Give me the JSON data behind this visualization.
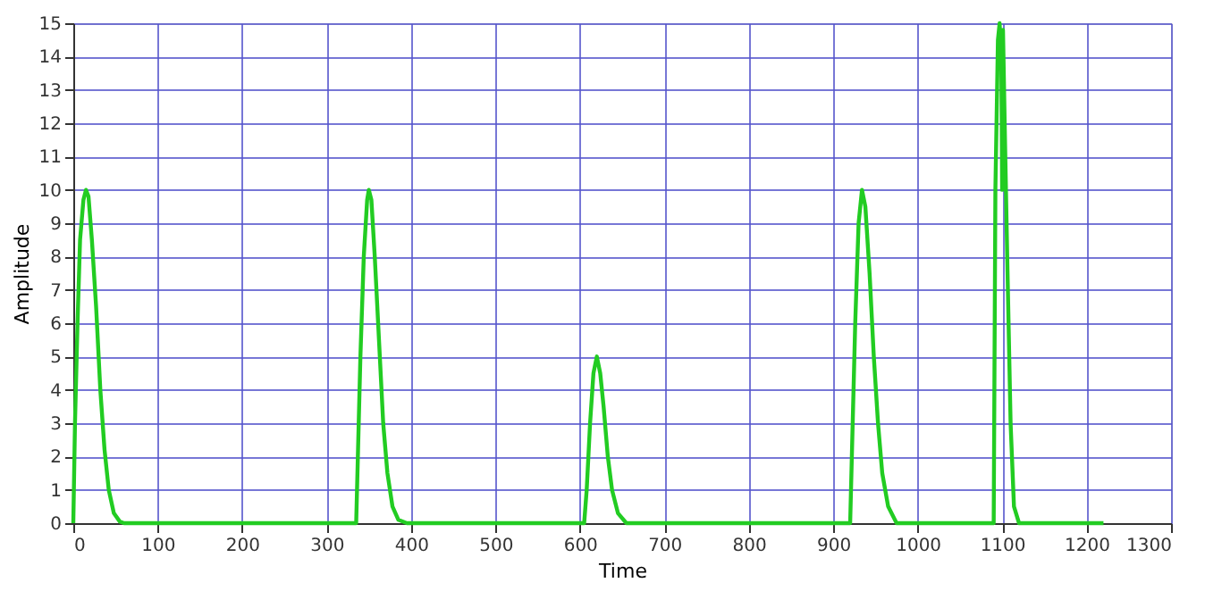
{
  "chart_data": {
    "type": "line",
    "xlabel": "Time",
    "ylabel": "Amplitude",
    "xlim": [
      0,
      1300
    ],
    "xticks": [
      0,
      100,
      200,
      300,
      400,
      500,
      600,
      700,
      800,
      900,
      1000,
      1100,
      1200,
      1300
    ],
    "ylim": [
      0,
      15
    ],
    "yticks": [
      0,
      1,
      2,
      3,
      4,
      5,
      6,
      7,
      8,
      9,
      10,
      11,
      12,
      13,
      14,
      15
    ],
    "grid": true,
    "marker": "none",
    "line_style": "solid",
    "series": [
      {
        "color": "#22cc22",
        "x": [
          0,
          2,
          5,
          8,
          12,
          15,
          18,
          22,
          27,
          32,
          37,
          42,
          48,
          55,
          60,
          335,
          337,
          340,
          344,
          348,
          350,
          353,
          357,
          362,
          367,
          372,
          378,
          385,
          395,
          605,
          608,
          612,
          616,
          620,
          624,
          628,
          633,
          638,
          645,
          655,
          920,
          922,
          926,
          930,
          934,
          938,
          943,
          948,
          953,
          958,
          965,
          975,
          1090,
          1092,
          1095,
          1097,
          1099,
          1100,
          1101,
          1103,
          1106,
          1110,
          1114,
          1120,
          1220
        ],
        "values": [
          0,
          3,
          6,
          8.5,
          9.7,
          10,
          9.8,
          8.5,
          6.5,
          4,
          2.2,
          1,
          0.3,
          0.05,
          0,
          0,
          2,
          5,
          8,
          9.7,
          10,
          9.7,
          8,
          5.5,
          3,
          1.5,
          0.5,
          0.1,
          0,
          0,
          1,
          3,
          4.5,
          5,
          4.5,
          3.5,
          2,
          1,
          0.3,
          0,
          0,
          2,
          6,
          9,
          10,
          9.5,
          7.5,
          5,
          3,
          1.5,
          0.5,
          0,
          0,
          10,
          14.5,
          15,
          14,
          10,
          14.8,
          12,
          8,
          3,
          0.5,
          0,
          0
        ]
      }
    ]
  }
}
